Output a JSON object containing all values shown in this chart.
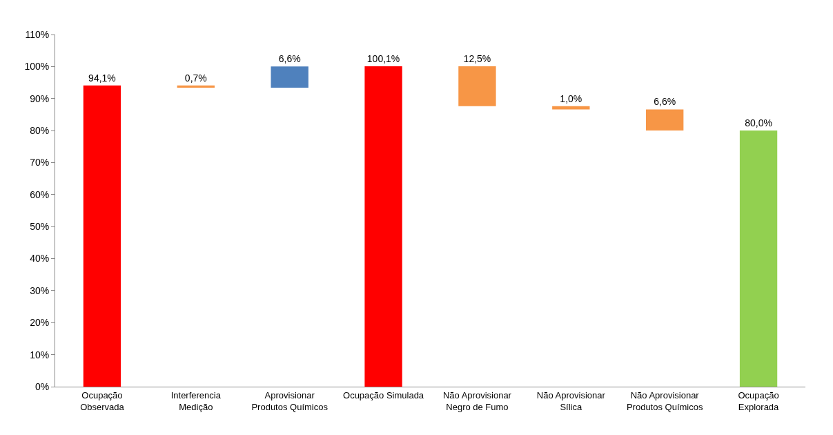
{
  "chart_data": {
    "type": "bar",
    "categories": [
      "Ocupação\nObservada",
      "Interferencia\nMedição",
      "Aprovisionar\nProdutos Químicos",
      "Ocupação Simulada",
      "Não Aprovisionar\nNegro de Fumo",
      "Não Aprovisionar\nSílica",
      "Não Aprovisionar\nProdutos Químicos",
      "Ocupação\nExplorada"
    ],
    "values": [
      94.1,
      0.7,
      6.6,
      100.1,
      12.5,
      1.0,
      6.6,
      80.0
    ],
    "base": [
      0,
      93.4,
      93.4,
      0,
      87.6,
      86.6,
      80.0,
      0
    ],
    "colors": [
      "#ff0000",
      "#f79646",
      "#4f81bd",
      "#ff0000",
      "#f79646",
      "#f79646",
      "#f79646",
      "#92d050"
    ],
    "value_labels": [
      "94,1%",
      "0,7%",
      "6,6%",
      "100,1%",
      "12,5%",
      "1,0%",
      "6,6%",
      "80,0%"
    ],
    "ylim": [
      0,
      110
    ],
    "yticks": [
      {
        "value": 0,
        "label": "0%"
      },
      {
        "value": 10,
        "label": "10%"
      },
      {
        "value": 20,
        "label": "20%"
      },
      {
        "value": 30,
        "label": "30%"
      },
      {
        "value": 40,
        "label": "40%"
      },
      {
        "value": 50,
        "label": "50%"
      },
      {
        "value": 60,
        "label": "60%"
      },
      {
        "value": 70,
        "label": "70%"
      },
      {
        "value": 80,
        "label": "80%"
      },
      {
        "value": 90,
        "label": "90%"
      },
      {
        "value": 100,
        "label": "100%"
      },
      {
        "value": 110,
        "label": "110%"
      }
    ],
    "grid": false,
    "legend": false
  }
}
